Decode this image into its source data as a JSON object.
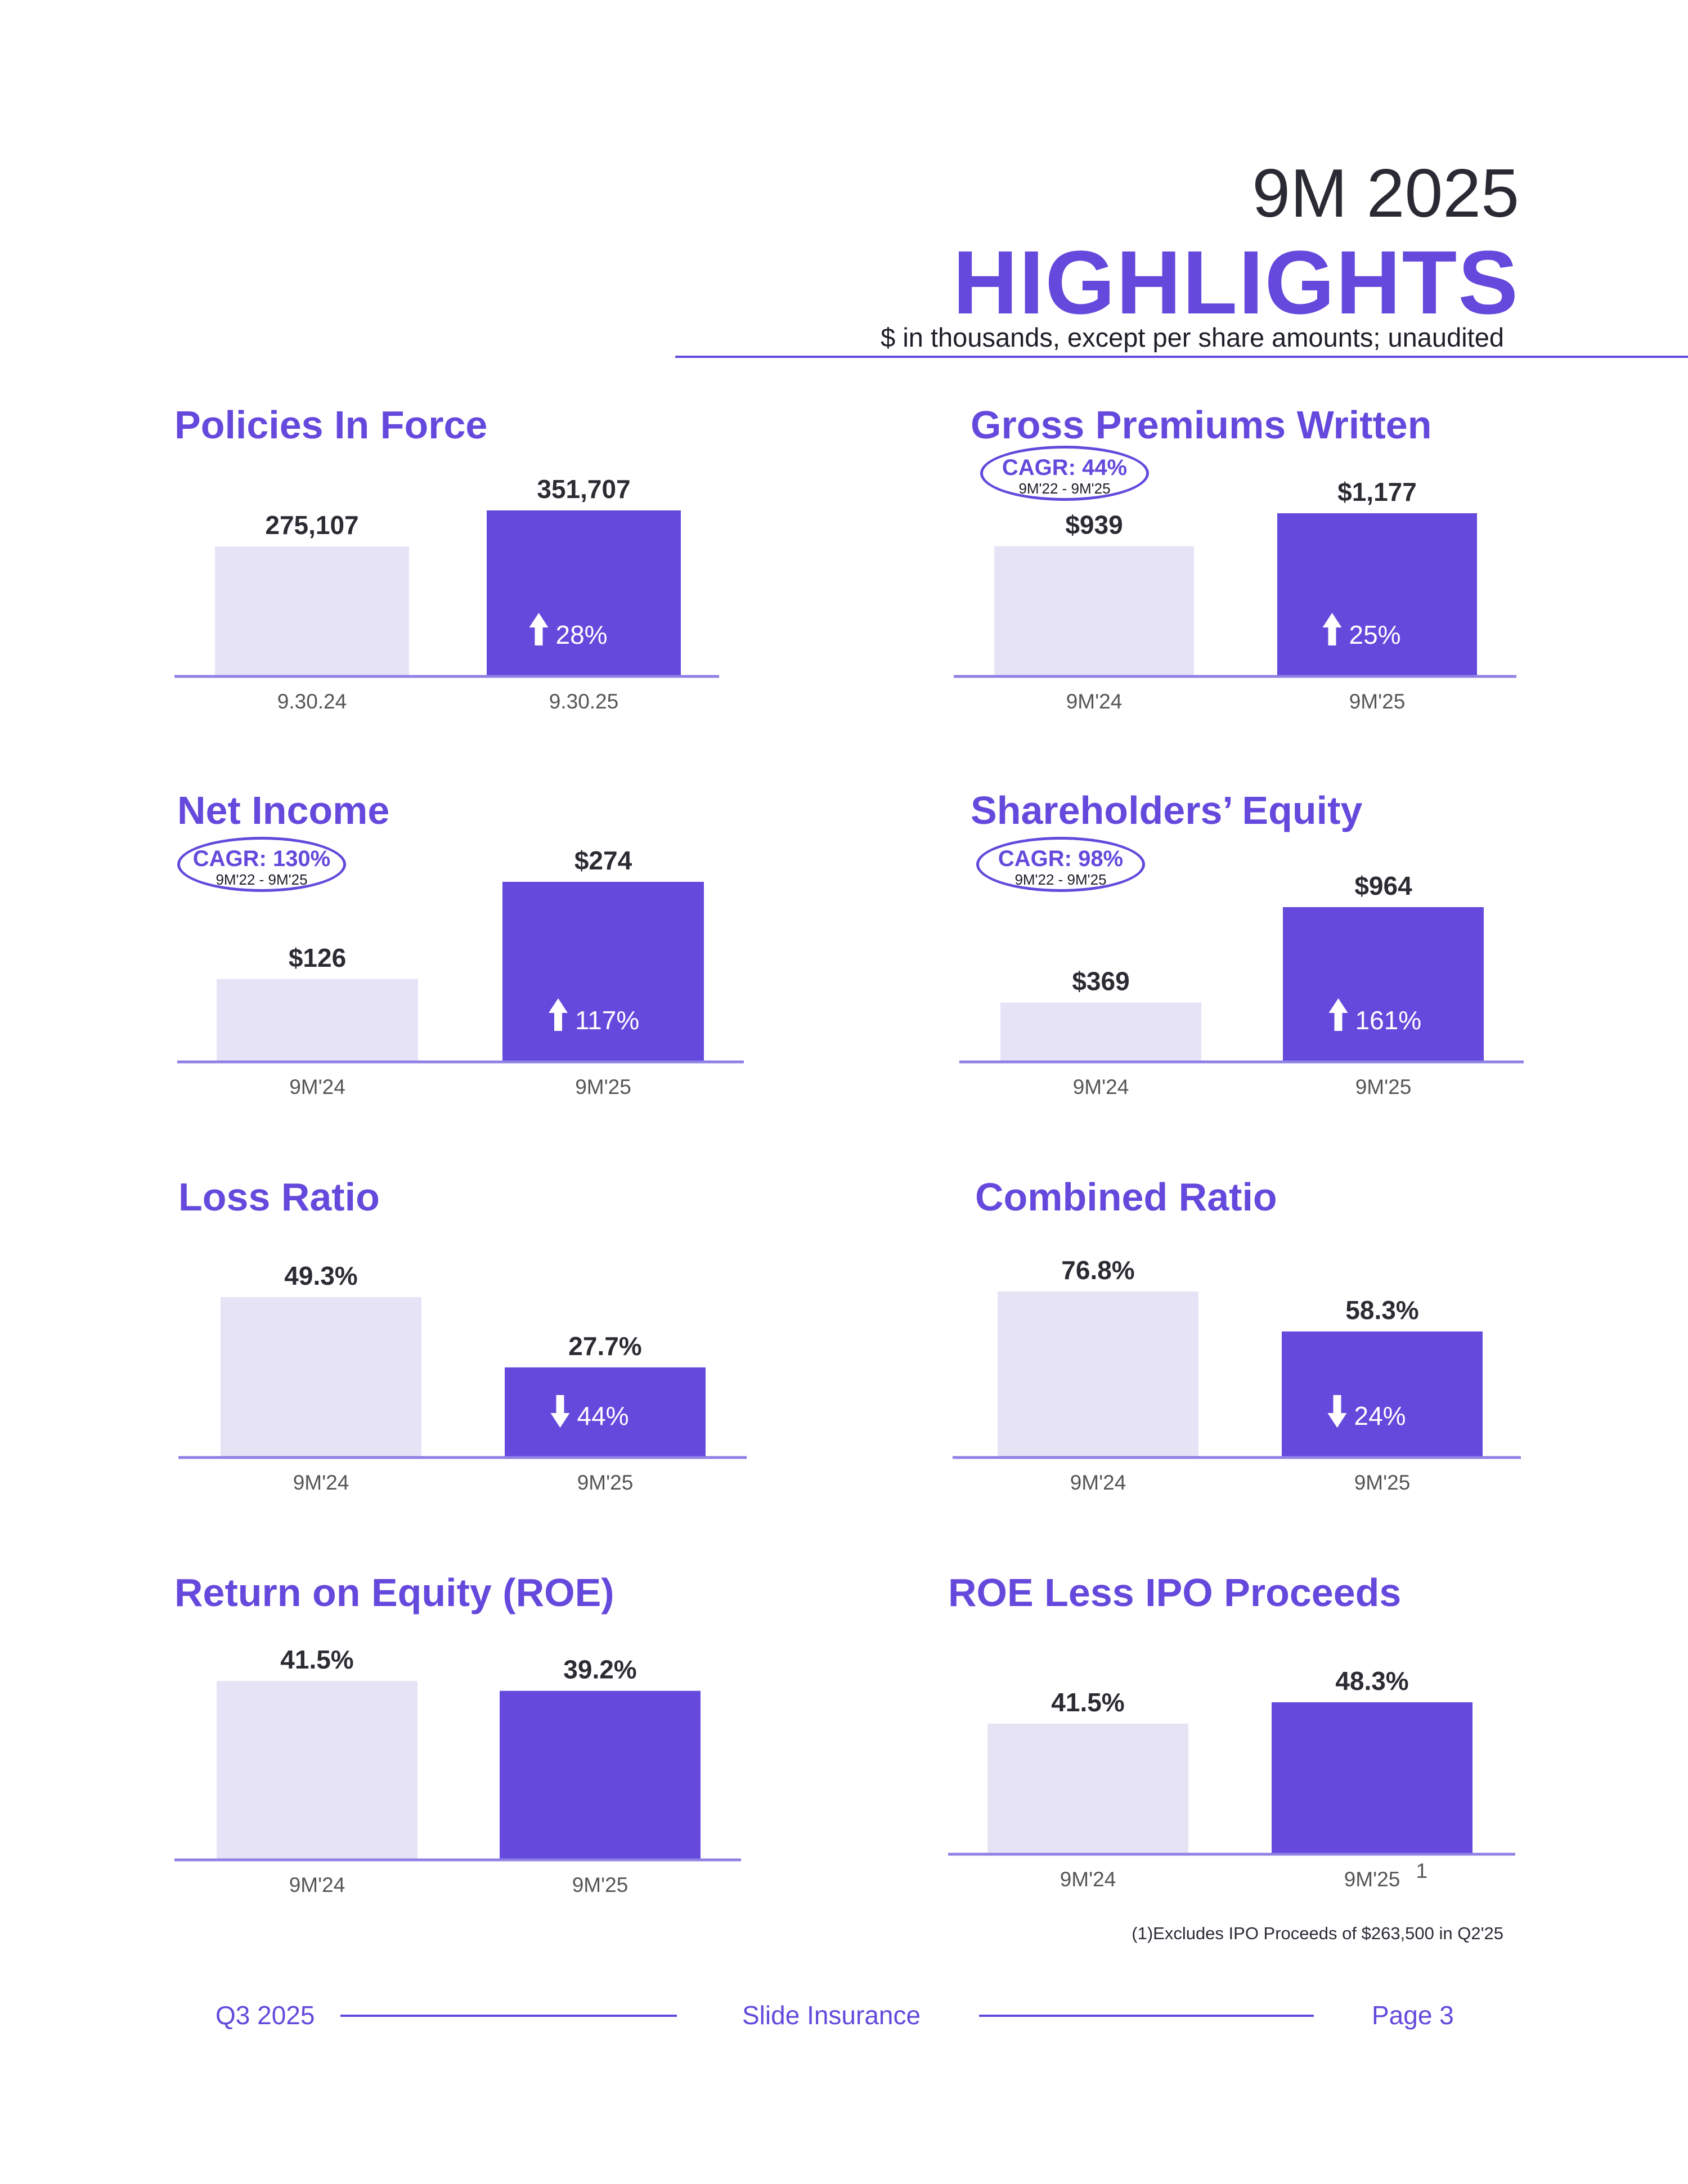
{
  "header": {
    "period": "9M 2025",
    "title": "HIGHLIGHTS",
    "subtitle": "$ in thousands, except per share amounts; unaudited"
  },
  "colors": {
    "accent": "#6449dc",
    "bar_prior": "#e6e3f7",
    "bar_current": "#6449dc",
    "baseline": "#8f80e6"
  },
  "chart_data": [
    {
      "type": "bar",
      "title": "Policies In Force",
      "categories": [
        "9.30.24",
        "9.30.25"
      ],
      "values": [
        275107,
        351707
      ],
      "labels": [
        "275,107",
        "351,707"
      ],
      "change": {
        "direction": "up",
        "text": "28%"
      },
      "cagr": null
    },
    {
      "type": "bar",
      "title": "Gross Premiums Written",
      "categories": [
        "9M'24",
        "9M'25"
      ],
      "values": [
        939,
        1177
      ],
      "labels": [
        "$939",
        "$1,177"
      ],
      "change": {
        "direction": "up",
        "text": "25%"
      },
      "cagr": {
        "label": "CAGR: 44%",
        "range": "9M'22 - 9M'25"
      }
    },
    {
      "type": "bar",
      "title": "Net Income",
      "categories": [
        "9M'24",
        "9M'25"
      ],
      "values": [
        126,
        274
      ],
      "labels": [
        "$126",
        "$274"
      ],
      "change": {
        "direction": "up",
        "text": "117%"
      },
      "cagr": {
        "label": "CAGR: 130%",
        "range": "9M'22 - 9M'25"
      }
    },
    {
      "type": "bar",
      "title": "Shareholders’ Equity",
      "categories": [
        "9M'24",
        "9M'25"
      ],
      "values": [
        369,
        964
      ],
      "labels": [
        "$369",
        "$964"
      ],
      "change": {
        "direction": "up",
        "text": "161%"
      },
      "cagr": {
        "label": "CAGR: 98%",
        "range": "9M'22 - 9M'25"
      }
    },
    {
      "type": "bar",
      "title": "Loss Ratio",
      "categories": [
        "9M'24",
        "9M'25"
      ],
      "values": [
        49.3,
        27.7
      ],
      "labels": [
        "49.3%",
        "27.7%"
      ],
      "change": {
        "direction": "down",
        "text": "44%"
      },
      "cagr": null
    },
    {
      "type": "bar",
      "title": "Combined Ratio",
      "categories": [
        "9M'24",
        "9M'25"
      ],
      "values": [
        76.8,
        58.3
      ],
      "labels": [
        "76.8%",
        "58.3%"
      ],
      "change": {
        "direction": "down",
        "text": "24%"
      },
      "cagr": null
    },
    {
      "type": "bar",
      "title": "Return on Equity (ROE)",
      "categories": [
        "9M'24",
        "9M'25"
      ],
      "values": [
        41.5,
        39.2
      ],
      "labels": [
        "41.5%",
        "39.2%"
      ],
      "change": null,
      "cagr": null
    },
    {
      "type": "bar",
      "title": "ROE Less IPO Proceeds",
      "categories": [
        "9M'24",
        "9M'25"
      ],
      "values": [
        41.5,
        48.3
      ],
      "labels": [
        "41.5%",
        "48.3%"
      ],
      "category_superscripts": [
        "",
        "1"
      ],
      "change": null,
      "cagr": null
    }
  ],
  "footnote": "(1)Excludes IPO Proceeds of $263,500 in Q2'25",
  "footer": {
    "left": "Q3 2025",
    "center": "Slide Insurance",
    "right": "Page 3"
  }
}
